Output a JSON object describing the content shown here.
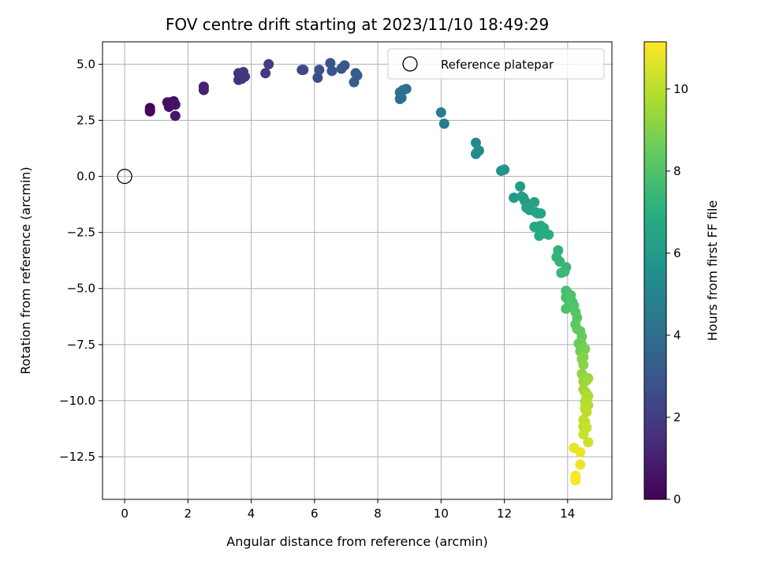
{
  "chart_data": {
    "type": "scatter",
    "title": "FOV centre drift starting at 2023/11/10 18:49:29",
    "xlabel": "Angular distance from reference (arcmin)",
    "ylabel": "Rotation from reference (arcmin)",
    "xlim": [
      -0.7,
      15.4
    ],
    "ylim": [
      -14.4,
      6.0
    ],
    "xticks": [
      0,
      2,
      4,
      6,
      8,
      10,
      12,
      14
    ],
    "yticks": [
      5.0,
      2.5,
      0.0,
      -2.5,
      -5.0,
      -7.5,
      -10.0,
      -12.5
    ],
    "xtick_labels": [
      "0",
      "2",
      "4",
      "6",
      "8",
      "10",
      "12",
      "14"
    ],
    "ytick_labels": [
      "5.0",
      "2.5",
      "0.0",
      "−2.5",
      "−5.0",
      "−7.5",
      "−10.0",
      "−12.5"
    ],
    "grid": true,
    "colormap": "viridis",
    "colorbar": {
      "label": "Hours from first FF file",
      "range": [
        0,
        11.15
      ],
      "ticks": [
        0,
        2,
        4,
        6,
        8,
        10
      ],
      "tick_labels": [
        "0",
        "2",
        "4",
        "6",
        "8",
        "10"
      ]
    },
    "legend": {
      "placement": "upper right",
      "entries": [
        {
          "label": "Reference platepar",
          "marker": "open-circle"
        }
      ]
    },
    "reference_point": {
      "x": 0,
      "y": 0
    },
    "series": [
      {
        "points": [
          [
            0.8,
            3.05,
            0.1
          ],
          [
            0.8,
            2.95,
            0.15
          ],
          [
            0.8,
            2.9,
            0.2
          ],
          [
            1.35,
            3.3,
            0.4
          ],
          [
            1.4,
            3.1,
            0.45
          ],
          [
            1.45,
            3.3,
            0.5
          ],
          [
            1.55,
            3.35,
            0.55
          ],
          [
            1.6,
            3.2,
            0.6
          ],
          [
            1.6,
            2.7,
            0.65
          ],
          [
            2.5,
            4.0,
            1.0
          ],
          [
            2.5,
            3.85,
            1.05
          ],
          [
            3.6,
            4.6,
            1.5
          ],
          [
            3.6,
            4.3,
            1.55
          ],
          [
            3.7,
            4.35,
            1.6
          ],
          [
            3.75,
            4.65,
            1.65
          ],
          [
            3.8,
            4.45,
            1.7
          ],
          [
            4.45,
            4.6,
            1.9
          ],
          [
            4.55,
            5.0,
            2.0
          ],
          [
            5.6,
            4.75,
            2.4
          ],
          [
            5.65,
            4.75,
            2.45
          ],
          [
            6.1,
            4.4,
            2.65
          ],
          [
            6.15,
            4.75,
            2.7
          ],
          [
            6.5,
            5.05,
            2.85
          ],
          [
            6.55,
            4.7,
            2.9
          ],
          [
            6.85,
            4.8,
            3.0
          ],
          [
            6.95,
            4.95,
            3.05
          ],
          [
            7.25,
            4.2,
            3.2
          ],
          [
            7.3,
            4.6,
            3.25
          ],
          [
            7.35,
            4.5,
            3.3
          ],
          [
            8.7,
            3.75,
            4.0
          ],
          [
            8.7,
            3.45,
            4.05
          ],
          [
            8.75,
            3.5,
            4.1
          ],
          [
            8.8,
            3.85,
            4.15
          ],
          [
            8.9,
            3.9,
            4.2
          ],
          [
            10.0,
            2.85,
            4.6
          ],
          [
            10.1,
            2.35,
            4.65
          ],
          [
            11.1,
            1.5,
            5.2
          ],
          [
            11.1,
            1.0,
            5.25
          ],
          [
            11.15,
            1.1,
            5.3
          ],
          [
            11.2,
            1.15,
            5.35
          ],
          [
            11.9,
            0.25,
            5.7
          ],
          [
            12.0,
            0.3,
            5.75
          ],
          [
            12.0,
            0.3,
            5.8
          ],
          [
            12.3,
            -0.95,
            6.0
          ],
          [
            12.5,
            -0.45,
            6.1
          ],
          [
            12.55,
            -0.9,
            6.15
          ],
          [
            12.6,
            -0.95,
            6.2
          ],
          [
            12.65,
            -1.1,
            6.25
          ],
          [
            12.7,
            -1.4,
            6.3
          ],
          [
            12.8,
            -1.5,
            6.35
          ],
          [
            12.95,
            -1.15,
            6.4
          ],
          [
            13.0,
            -1.6,
            6.45
          ],
          [
            13.05,
            -1.65,
            6.5
          ],
          [
            13.15,
            -1.65,
            6.55
          ],
          [
            12.95,
            -2.25,
            6.6
          ],
          [
            13.05,
            -2.25,
            6.65
          ],
          [
            13.15,
            -2.2,
            6.7
          ],
          [
            13.2,
            -2.4,
            6.75
          ],
          [
            13.1,
            -2.65,
            6.8
          ],
          [
            13.25,
            -2.3,
            6.85
          ],
          [
            13.3,
            -2.55,
            6.9
          ],
          [
            13.4,
            -2.6,
            6.95
          ],
          [
            13.7,
            -3.3,
            7.2
          ],
          [
            13.65,
            -3.6,
            7.25
          ],
          [
            13.75,
            -3.8,
            7.3
          ],
          [
            13.95,
            -4.05,
            7.35
          ],
          [
            13.8,
            -4.3,
            7.4
          ],
          [
            13.9,
            -4.25,
            7.45
          ],
          [
            13.95,
            -5.1,
            7.7
          ],
          [
            14.0,
            -5.2,
            7.75
          ],
          [
            13.95,
            -5.4,
            7.8
          ],
          [
            14.05,
            -5.6,
            7.85
          ],
          [
            13.95,
            -5.9,
            7.9
          ],
          [
            14.1,
            -5.3,
            7.95
          ],
          [
            14.15,
            -5.6,
            8.0
          ],
          [
            14.2,
            -5.75,
            8.05
          ],
          [
            14.25,
            -6.05,
            8.1
          ],
          [
            14.3,
            -6.3,
            8.2
          ],
          [
            14.25,
            -6.6,
            8.3
          ],
          [
            14.3,
            -6.8,
            8.35
          ],
          [
            14.4,
            -6.9,
            8.4
          ],
          [
            14.45,
            -7.15,
            8.5
          ],
          [
            14.35,
            -7.45,
            8.55
          ],
          [
            14.45,
            -7.5,
            8.6
          ],
          [
            14.4,
            -7.8,
            8.7
          ],
          [
            14.5,
            -7.65,
            8.75
          ],
          [
            14.55,
            -7.7,
            8.8
          ],
          [
            14.45,
            -8.15,
            9.0
          ],
          [
            14.5,
            -8.05,
            9.05
          ],
          [
            14.5,
            -8.4,
            9.1
          ],
          [
            14.45,
            -8.8,
            9.2
          ],
          [
            14.5,
            -8.9,
            9.25
          ],
          [
            14.55,
            -9.0,
            9.3
          ],
          [
            14.5,
            -9.15,
            9.35
          ],
          [
            14.6,
            -9.1,
            9.4
          ],
          [
            14.65,
            -9.0,
            9.45
          ],
          [
            14.5,
            -9.5,
            9.55
          ],
          [
            14.55,
            -9.6,
            9.6
          ],
          [
            14.6,
            -9.7,
            9.65
          ],
          [
            14.6,
            -9.85,
            9.7
          ],
          [
            14.65,
            -9.8,
            9.75
          ],
          [
            14.55,
            -10.05,
            9.8
          ],
          [
            14.6,
            -10.1,
            9.85
          ],
          [
            14.65,
            -10.2,
            9.9
          ],
          [
            14.55,
            -10.35,
            9.95
          ],
          [
            14.6,
            -10.5,
            10.0
          ],
          [
            14.5,
            -10.85,
            10.05
          ],
          [
            14.55,
            -10.95,
            10.1
          ],
          [
            14.5,
            -11.15,
            10.15
          ],
          [
            14.6,
            -11.2,
            10.2
          ],
          [
            14.5,
            -11.5,
            10.25
          ],
          [
            14.65,
            -11.85,
            10.3
          ],
          [
            14.2,
            -12.1,
            10.8
          ],
          [
            14.4,
            -12.3,
            10.85
          ],
          [
            14.4,
            -12.85,
            10.9
          ],
          [
            14.25,
            -13.35,
            11.0
          ],
          [
            14.25,
            -13.45,
            11.05
          ],
          [
            14.25,
            -13.55,
            11.1
          ]
        ]
      }
    ]
  }
}
